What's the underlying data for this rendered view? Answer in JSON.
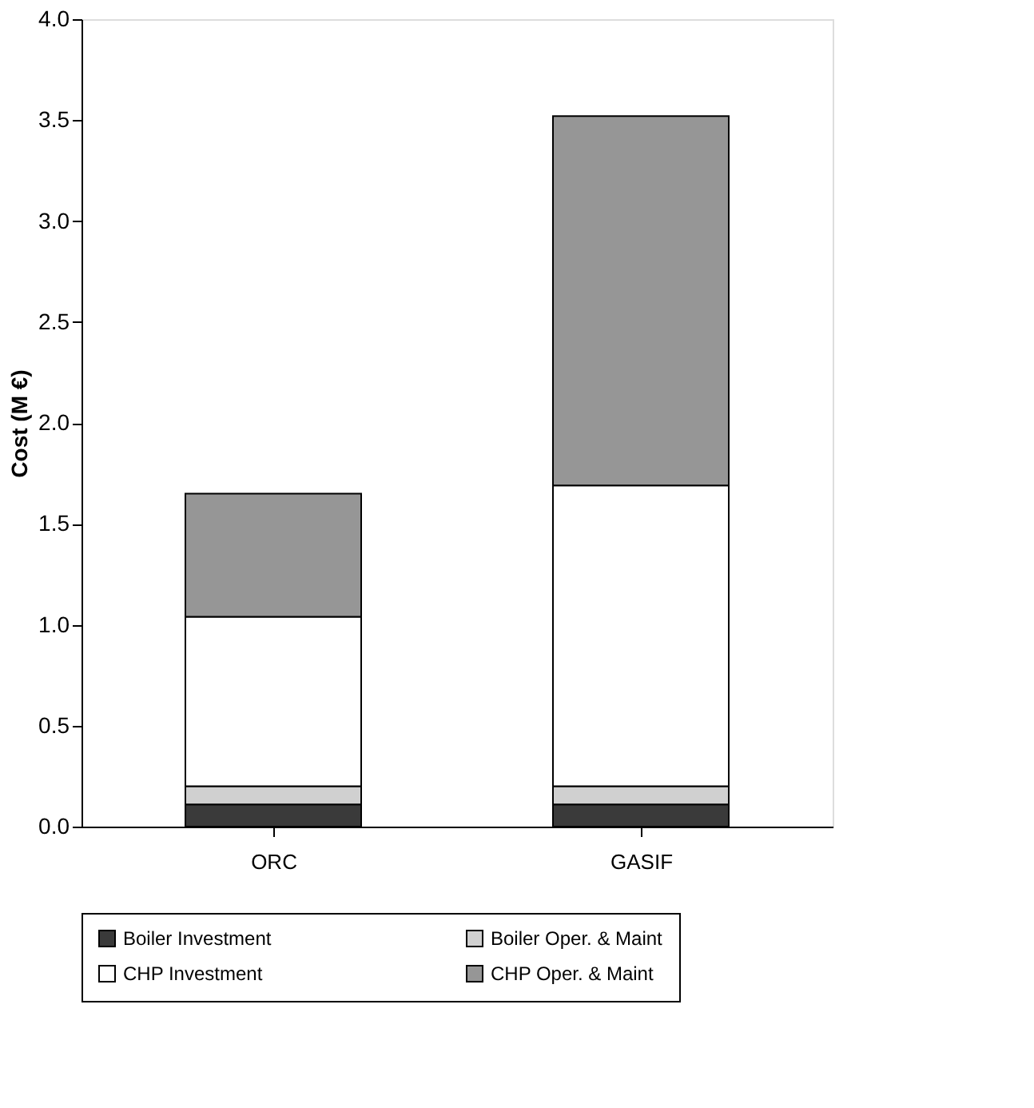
{
  "chart_data": {
    "type": "bar",
    "stacked": true,
    "ylabel": "Cost (M €)",
    "categories": [
      "ORC",
      "GASIF"
    ],
    "series": [
      {
        "name": "Boiler Investment",
        "color": "#3a3a3a",
        "values": [
          0.11,
          0.11
        ]
      },
      {
        "name": "Boiler Oper. & Maint",
        "color": "#d0d0d0",
        "values": [
          0.09,
          0.09
        ]
      },
      {
        "name": "CHP Investment",
        "color": "#ffffff",
        "values": [
          0.84,
          1.49
        ]
      },
      {
        "name": "CHP Oper. & Maint",
        "color": "#969696",
        "values": [
          0.61,
          1.83
        ]
      }
    ],
    "ylim": [
      0,
      4
    ],
    "yticks": [
      {
        "value": 0,
        "label": "0.0"
      },
      {
        "value": 0.5,
        "label": "0.5"
      },
      {
        "value": 1,
        "label": "1.0"
      },
      {
        "value": 1.5,
        "label": "1.5"
      },
      {
        "value": 2,
        "label": "2.0"
      },
      {
        "value": 2.5,
        "label": "2.5"
      },
      {
        "value": 3,
        "label": "3.0"
      },
      {
        "value": 3.5,
        "label": "3.5"
      },
      {
        "value": 4,
        "label": "4.0"
      }
    ],
    "grid": false,
    "legend": "bottom"
  }
}
